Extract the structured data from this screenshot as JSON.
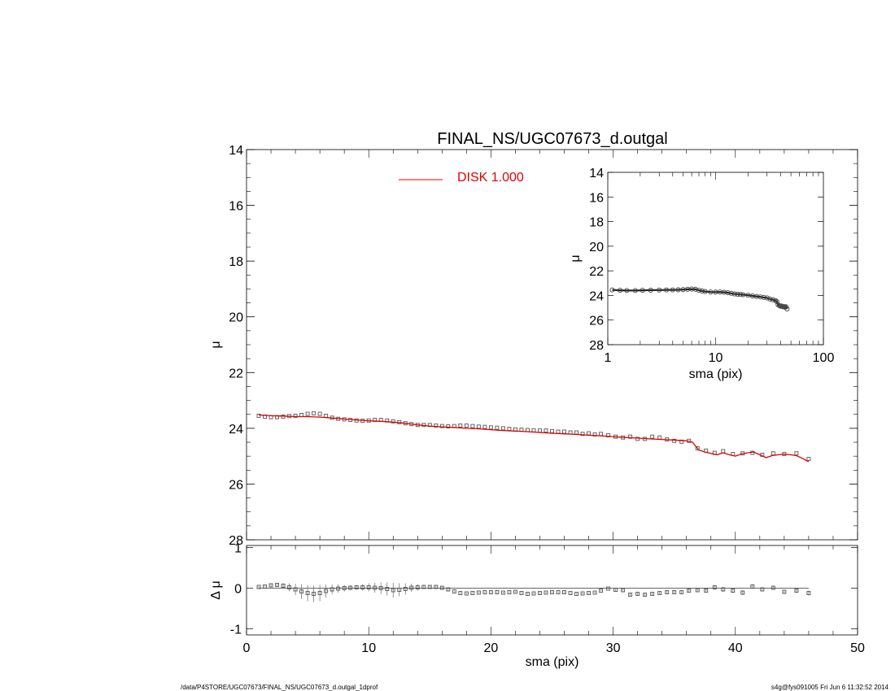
{
  "chart_data": [
    {
      "id": "main",
      "type": "scatter",
      "title": "FINAL_NS/UGC07673_d.outgal",
      "xlabel": "",
      "ylabel": "μ",
      "xlim": [
        0,
        50
      ],
      "ylim": [
        28,
        14
      ],
      "y_inverted": true,
      "yticks": [
        "14",
        "16",
        "18",
        "20",
        "22",
        "24",
        "26",
        "28"
      ],
      "legend": {
        "placement": "top-center",
        "entries": [
          {
            "name": "DISK  1.000",
            "color": "#e00000"
          }
        ]
      },
      "series": [
        {
          "name": "data",
          "style": "open-square",
          "color": "#555555",
          "x": [
            1.0,
            1.5,
            2.0,
            2.5,
            3.0,
            3.5,
            4.0,
            4.5,
            5.0,
            5.5,
            6.0,
            6.5,
            7.0,
            7.5,
            8.0,
            8.5,
            9.0,
            9.5,
            10.0,
            10.5,
            11.0,
            11.5,
            12.0,
            12.5,
            13.0,
            13.5,
            14.0,
            14.5,
            15.0,
            15.5,
            16.0,
            16.5,
            17.0,
            17.5,
            18.0,
            18.5,
            19.0,
            19.5,
            20.0,
            20.5,
            21.0,
            21.5,
            22.0,
            22.5,
            23.0,
            23.5,
            24.0,
            24.5,
            25.0,
            25.5,
            26.0,
            26.5,
            27.0,
            27.5,
            28.0,
            28.5,
            29.0,
            29.6,
            30.2,
            30.8,
            31.4,
            32.0,
            32.6,
            33.2,
            33.8,
            34.4,
            35.0,
            35.6,
            36.2,
            36.9,
            37.6,
            38.3,
            39.0,
            39.8,
            40.6,
            41.4,
            42.2,
            43.1,
            44.0,
            45.0,
            46.0
          ],
          "y": [
            23.55,
            23.58,
            23.6,
            23.6,
            23.58,
            23.56,
            23.55,
            23.52,
            23.48,
            23.46,
            23.48,
            23.55,
            23.62,
            23.66,
            23.68,
            23.7,
            23.72,
            23.73,
            23.72,
            23.7,
            23.7,
            23.72,
            23.75,
            23.78,
            23.82,
            23.85,
            23.88,
            23.88,
            23.88,
            23.9,
            23.92,
            23.93,
            23.92,
            23.9,
            23.9,
            23.92,
            23.94,
            23.95,
            23.97,
            23.98,
            24.0,
            24.02,
            24.04,
            24.05,
            24.06,
            24.07,
            24.08,
            24.08,
            24.1,
            24.12,
            24.12,
            24.15,
            24.15,
            24.2,
            24.18,
            24.22,
            24.2,
            24.25,
            24.3,
            24.33,
            24.3,
            24.38,
            24.38,
            24.3,
            24.33,
            24.4,
            24.45,
            24.48,
            24.45,
            24.72,
            24.8,
            24.88,
            24.82,
            24.92,
            24.9,
            24.88,
            24.95,
            24.9,
            24.92,
            24.9,
            25.1
          ]
        },
        {
          "name": "DISK  1.000",
          "style": "line",
          "color": "#e00000",
          "x": [
            1.0,
            2.0,
            3.0,
            4.0,
            5.0,
            6.0,
            7.0,
            8.0,
            9.0,
            10.0,
            11.0,
            12.0,
            13.0,
            14.0,
            15.0,
            16.0,
            17.0,
            18.0,
            19.0,
            20.0,
            21.0,
            22.0,
            23.0,
            24.0,
            25.0,
            26.0,
            27.0,
            28.0,
            29.0,
            30.0,
            31.0,
            32.0,
            33.0,
            34.0,
            35.0,
            36.0,
            36.5,
            37.0,
            37.5,
            38.0,
            38.5,
            39.0,
            39.5,
            40.0,
            40.5,
            41.0,
            41.5,
            42.0,
            42.5,
            43.0,
            43.5,
            44.0,
            44.5,
            45.0,
            45.5,
            46.0
          ],
          "y": [
            23.52,
            23.55,
            23.56,
            23.58,
            23.58,
            23.6,
            23.63,
            23.67,
            23.7,
            23.73,
            23.75,
            23.78,
            23.82,
            23.88,
            23.92,
            23.95,
            23.97,
            24.0,
            24.02,
            24.05,
            24.08,
            24.1,
            24.12,
            24.15,
            24.18,
            24.2,
            24.22,
            24.25,
            24.27,
            24.3,
            24.33,
            24.35,
            24.38,
            24.4,
            24.42,
            24.45,
            24.5,
            24.78,
            24.85,
            24.9,
            24.95,
            24.88,
            24.95,
            25.0,
            24.92,
            24.88,
            24.85,
            24.95,
            25.05,
            24.98,
            24.95,
            24.93,
            24.95,
            24.98,
            25.08,
            25.2
          ]
        }
      ]
    },
    {
      "id": "inset",
      "type": "scatter",
      "xlabel": "sma (pix)",
      "ylabel": "μ",
      "xscale": "log",
      "xlim": [
        1,
        100
      ],
      "ylim": [
        28,
        14
      ],
      "y_inverted": true,
      "xticks": [
        "1",
        "10",
        "100"
      ],
      "yticks": [
        "14",
        "16",
        "18",
        "20",
        "22",
        "24",
        "26",
        "28"
      ],
      "series": [
        {
          "name": "data",
          "style": "open-circle-line",
          "color": "#444444",
          "x": [
            1.1,
            1.3,
            1.5,
            1.8,
            2.1,
            2.5,
            3.0,
            3.5,
            4.0,
            4.5,
            5.0,
            5.5,
            6.0,
            6.5,
            7.0,
            7.5,
            8.0,
            9.0,
            10.0,
            11.0,
            12.0,
            13.0,
            14.0,
            15.0,
            16.0,
            17.0,
            18.0,
            20.0,
            22.0,
            24.0,
            26.0,
            28.0,
            30.0,
            32.0,
            34.0,
            36.0,
            37.0,
            38.0,
            39.0,
            40.0,
            41.0,
            42.0,
            43.0,
            44.0,
            45.0,
            46.0
          ],
          "y": [
            23.55,
            23.58,
            23.6,
            23.6,
            23.58,
            23.57,
            23.56,
            23.55,
            23.55,
            23.54,
            23.52,
            23.5,
            23.48,
            23.5,
            23.58,
            23.64,
            23.68,
            23.72,
            23.73,
            23.72,
            23.74,
            23.78,
            23.83,
            23.88,
            23.9,
            23.92,
            23.94,
            23.98,
            24.04,
            24.08,
            24.12,
            24.16,
            24.2,
            24.3,
            24.35,
            24.42,
            24.5,
            24.75,
            24.82,
            24.88,
            24.86,
            24.92,
            24.9,
            24.95,
            24.92,
            25.1
          ]
        }
      ]
    },
    {
      "id": "residual",
      "type": "scatter",
      "xlabel": "sma (pix)",
      "ylabel": "Δ μ",
      "xlim": [
        0,
        50
      ],
      "ylim": [
        -1.15,
        1.05
      ],
      "xticks": [
        "0",
        "10",
        "20",
        "30",
        "40",
        "50"
      ],
      "yticks": [
        "1",
        "0",
        "-1"
      ],
      "zero_line": true,
      "series": [
        {
          "name": "residuals",
          "style": "open-square-errorbar",
          "color": "#555555",
          "x": [
            1.0,
            1.5,
            2.0,
            2.5,
            3.0,
            3.5,
            4.0,
            4.5,
            5.0,
            5.5,
            6.0,
            6.5,
            7.0,
            7.5,
            8.0,
            8.5,
            9.0,
            9.5,
            10.0,
            10.5,
            11.0,
            11.5,
            12.0,
            12.5,
            13.0,
            13.5,
            14.0,
            14.5,
            15.0,
            15.5,
            16.0,
            16.5,
            17.0,
            17.5,
            18.0,
            18.5,
            19.0,
            19.5,
            20.0,
            20.5,
            21.0,
            21.5,
            22.0,
            22.5,
            23.0,
            23.5,
            24.0,
            24.5,
            25.0,
            25.5,
            26.0,
            26.5,
            27.0,
            27.5,
            28.0,
            28.5,
            29.0,
            29.6,
            30.2,
            30.8,
            31.4,
            32.0,
            32.6,
            33.2,
            33.8,
            34.4,
            35.0,
            35.6,
            36.2,
            36.9,
            37.6,
            38.3,
            39.0,
            39.8,
            40.6,
            41.4,
            42.2,
            43.1,
            44.0,
            45.0,
            46.0
          ],
          "y": [
            0.03,
            0.04,
            0.07,
            0.08,
            0.06,
            0.02,
            -0.03,
            -0.08,
            -0.12,
            -0.14,
            -0.12,
            -0.07,
            -0.03,
            -0.01,
            0.0,
            0.01,
            0.02,
            0.02,
            0.02,
            0.01,
            0.0,
            -0.02,
            -0.05,
            -0.04,
            -0.02,
            0.01,
            0.02,
            0.03,
            0.03,
            0.03,
            0.01,
            -0.03,
            -0.08,
            -0.12,
            -0.13,
            -0.12,
            -0.11,
            -0.1,
            -0.1,
            -0.1,
            -0.11,
            -0.1,
            -0.09,
            -0.12,
            -0.14,
            -0.13,
            -0.12,
            -0.11,
            -0.1,
            -0.1,
            -0.1,
            -0.12,
            -0.14,
            -0.13,
            -0.12,
            -0.11,
            -0.06,
            -0.01,
            -0.04,
            -0.05,
            -0.16,
            -0.14,
            -0.16,
            -0.14,
            -0.12,
            -0.1,
            -0.1,
            -0.1,
            -0.06,
            -0.05,
            -0.06,
            0.02,
            -0.03,
            -0.06,
            -0.11,
            0.04,
            -0.03,
            0.01,
            -0.09,
            -0.06,
            -0.12
          ],
          "err": [
            0.02,
            0.02,
            0.03,
            0.04,
            0.06,
            0.1,
            0.14,
            0.18,
            0.2,
            0.2,
            0.2,
            0.16,
            0.12,
            0.1,
            0.08,
            0.06,
            0.06,
            0.08,
            0.1,
            0.12,
            0.14,
            0.16,
            0.18,
            0.16,
            0.14,
            0.1,
            0.08,
            0.05,
            0.04,
            0.03,
            0.03,
            0.03,
            0.02,
            0.02,
            0.02,
            0.02,
            0.02,
            0.02,
            0.02,
            0.02,
            0.02,
            0.02,
            0.02,
            0.02,
            0.02,
            0.02,
            0.02,
            0.02,
            0.02,
            0.02,
            0.02,
            0.02,
            0.02,
            0.02,
            0.02,
            0.02,
            0.02,
            0.02,
            0.03,
            0.03,
            0.03,
            0.03,
            0.03,
            0.03,
            0.03,
            0.03,
            0.03,
            0.03,
            0.04,
            0.04,
            0.04,
            0.06,
            0.06,
            0.06,
            0.06,
            0.06,
            0.05,
            0.05,
            0.05,
            0.05,
            0.06
          ]
        }
      ]
    }
  ],
  "footer": {
    "left": "/data/P4STORE/UGC07673/FINAL_NS/UGC07673_d.outgal_1dprof",
    "right": "s4g@fys091005  Fri Jun  6 11:32:52 2014"
  }
}
